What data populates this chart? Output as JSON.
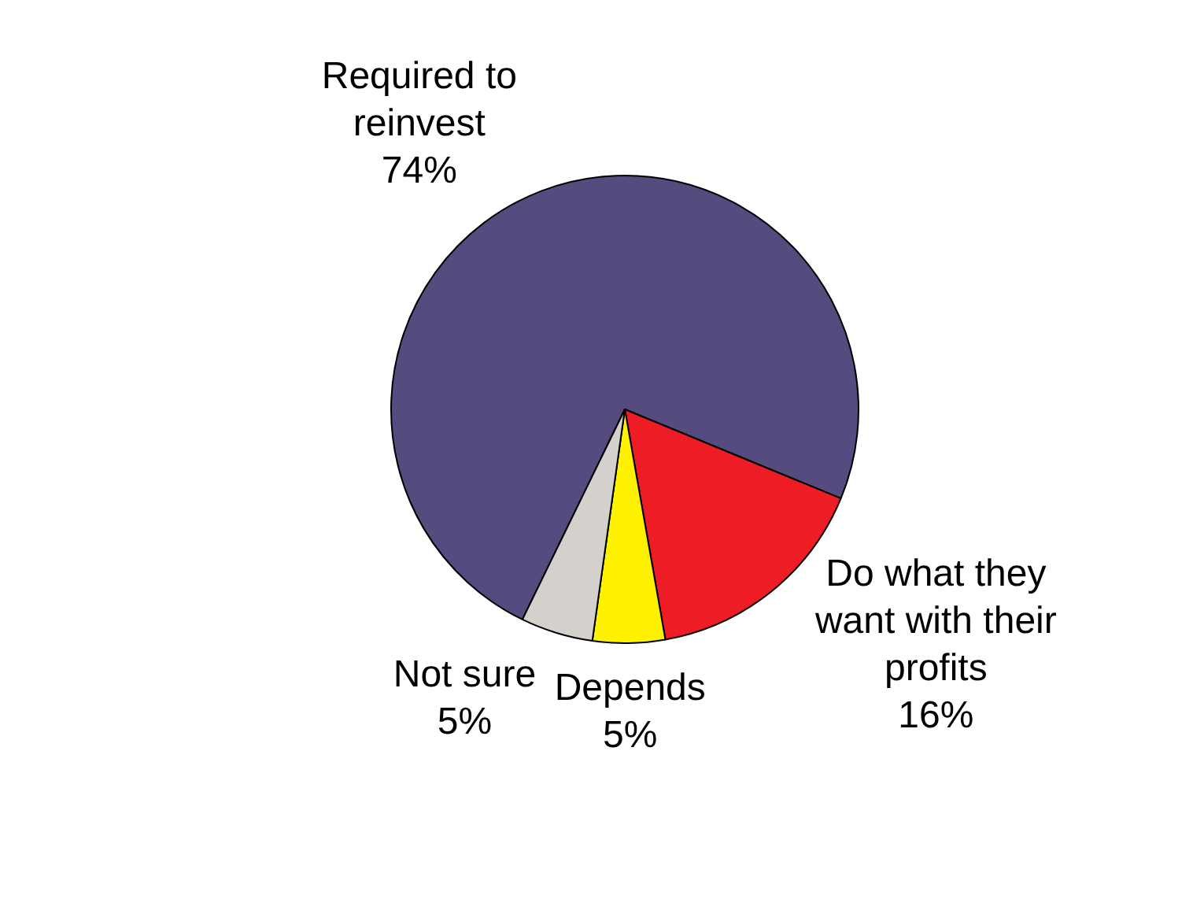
{
  "chart_data": {
    "type": "pie",
    "categories": [
      "Required to reinvest",
      "Do what they want with their profits",
      "Depends",
      "Not sure"
    ],
    "values": [
      74,
      16,
      5,
      5
    ],
    "colors": [
      "#554b7e",
      "#ee1c25",
      "#fff200",
      "#d4d0cc"
    ],
    "value_labels": [
      "74%",
      "16%",
      "5%",
      "5%"
    ],
    "legend": false
  }
}
